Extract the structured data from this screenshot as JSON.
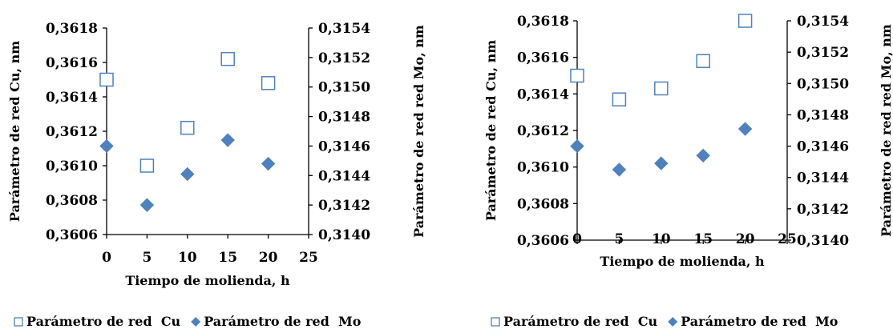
{
  "colors": {
    "cu_marker": "#4F81BD",
    "mo_marker": "#4F81BD",
    "axis": "#000000"
  },
  "chart_data": [
    {
      "type": "scatter",
      "xlabel": "Tiempo de molienda, h",
      "ylabel_left": "Parámetro de red Cu, nm",
      "ylabel_right": "Parámetro de red red  Mo, nm",
      "xlim": [
        0,
        25
      ],
      "xticks": [
        "0",
        "5",
        "10",
        "15",
        "20",
        "25"
      ],
      "ylim_left": [
        0.3606,
        0.3618
      ],
      "yticks_left": [
        "0,3606",
        "0,3608",
        "0,3610",
        "0,3612",
        "0,3614",
        "0,3616",
        "0,3618"
      ],
      "ylim_right": [
        0.314,
        0.3154
      ],
      "yticks_right": [
        "0,3140",
        "0,3142",
        "0,3144",
        "0,3146",
        "0,3148",
        "0,3150",
        "0,3152",
        "0,3154"
      ],
      "grid": false,
      "legend_position": "bottom",
      "series": [
        {
          "name": "Parámetro de red  Cu",
          "axis": "left",
          "marker": "hollow-square",
          "x": [
            0,
            5,
            10,
            15,
            20
          ],
          "y": [
            0.3615,
            0.361,
            0.36122,
            0.36162,
            0.36148
          ]
        },
        {
          "name": "Parámetro de red  Mo",
          "axis": "right",
          "marker": "filled-diamond",
          "x": [
            0,
            5,
            10,
            15,
            20
          ],
          "y": [
            0.3146,
            0.3142,
            0.31441,
            0.31464,
            0.31448
          ]
        }
      ]
    },
    {
      "type": "scatter",
      "xlabel": "Tiempo de molienda, h",
      "ylabel_left": "Parámetro de red Cu, nm",
      "ylabel_right": "Parámetro de red red  Mo, nm",
      "xlim": [
        0,
        25
      ],
      "xticks": [
        "0",
        "5",
        "10",
        "15",
        "20",
        "25"
      ],
      "ylim_left": [
        0.3606,
        0.3618
      ],
      "yticks_left": [
        "0,3606",
        "0,3608",
        "0,3610",
        "0,3612",
        "0,3614",
        "0,3616",
        "0,3618"
      ],
      "ylim_right": [
        0.314,
        0.3154
      ],
      "yticks_right": [
        "0,3140",
        "0,3142",
        "0,3144",
        "0,3146",
        "0,3148",
        "0,3150",
        "0,3152",
        "0,3154"
      ],
      "grid": false,
      "legend_position": "bottom",
      "series": [
        {
          "name": "Parámetro de red  Cu",
          "axis": "left",
          "marker": "hollow-square",
          "x": [
            0,
            5,
            10,
            15,
            20
          ],
          "y": [
            0.3615,
            0.36137,
            0.36143,
            0.36158,
            0.3618
          ]
        },
        {
          "name": "Parámetro de red  Mo",
          "axis": "right",
          "marker": "filled-diamond",
          "x": [
            0,
            5,
            10,
            15,
            20
          ],
          "y": [
            0.3146,
            0.31445,
            0.31449,
            0.31454,
            0.31471
          ]
        }
      ]
    }
  ]
}
